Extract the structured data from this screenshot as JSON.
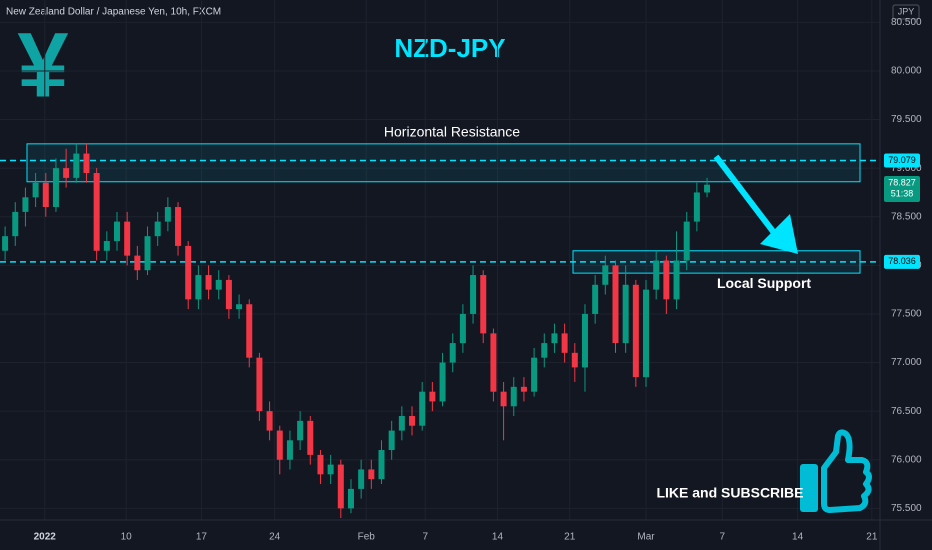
{
  "chart_data": {
    "type": "candlestick",
    "header": "New Zealand Dollar / Japanese Yen, 10h, FXCM",
    "currency": "JPY",
    "title": "NZD-JPY",
    "icon": "¥",
    "up_color": "#089981",
    "down_color": "#f23645",
    "accent_color": "#00e5ff",
    "open": [
      78.15,
      78.3,
      78.55,
      78.7,
      78.85,
      78.6,
      79.0,
      78.9,
      79.15,
      78.95,
      78.15,
      78.25,
      78.45,
      78.1,
      77.95,
      78.3,
      78.45,
      78.6,
      78.2,
      77.65,
      77.9,
      77.75,
      77.85,
      77.55,
      77.6,
      77.05,
      76.5,
      76.3,
      76.0,
      76.2,
      76.4,
      76.05,
      75.85,
      75.95,
      75.5,
      75.7,
      75.9,
      75.8,
      76.1,
      76.3,
      76.45,
      76.35,
      76.7,
      76.6,
      77.0,
      77.2,
      77.5,
      77.9,
      77.3,
      76.7,
      76.55,
      76.75,
      76.7,
      77.05,
      77.2,
      77.3,
      77.1,
      76.95,
      77.5,
      77.8,
      78.0,
      77.2,
      77.8,
      76.85,
      77.75,
      78.05,
      77.65,
      78.05,
      78.45,
      78.75
    ],
    "high": [
      78.4,
      78.65,
      78.8,
      78.95,
      78.95,
      79.1,
      79.2,
      79.25,
      79.25,
      79.0,
      78.35,
      78.55,
      78.55,
      78.2,
      78.4,
      78.55,
      78.7,
      78.65,
      78.25,
      78.0,
      78.0,
      77.95,
      77.9,
      77.7,
      77.65,
      77.1,
      76.6,
      76.35,
      76.3,
      76.5,
      76.45,
      76.1,
      76.05,
      76.0,
      75.8,
      76.0,
      76.0,
      76.2,
      76.4,
      76.55,
      76.55,
      76.8,
      76.8,
      77.1,
      77.3,
      77.6,
      78.0,
      77.95,
      77.35,
      76.8,
      76.85,
      76.85,
      77.15,
      77.3,
      77.4,
      77.4,
      77.2,
      77.6,
      77.9,
      78.1,
      78.05,
      78.0,
      77.85,
      77.85,
      78.15,
      78.1,
      78.35,
      78.55,
      78.85,
      78.9
    ],
    "low": [
      78.05,
      78.2,
      78.4,
      78.6,
      78.5,
      78.55,
      78.8,
      78.85,
      78.85,
      78.05,
      78.05,
      78.15,
      78.0,
      77.85,
      77.9,
      78.2,
      78.35,
      78.1,
      77.55,
      77.55,
      77.65,
      77.65,
      77.45,
      77.45,
      76.95,
      76.4,
      76.2,
      75.85,
      75.9,
      76.1,
      75.95,
      75.75,
      75.75,
      75.4,
      75.45,
      75.6,
      75.7,
      75.75,
      76.0,
      76.2,
      76.25,
      76.3,
      76.5,
      76.55,
      76.9,
      77.1,
      77.4,
      77.2,
      76.6,
      76.2,
      76.45,
      76.6,
      76.65,
      76.95,
      77.1,
      77.0,
      76.8,
      76.7,
      77.4,
      77.7,
      77.1,
      77.1,
      76.75,
      76.75,
      77.65,
      77.5,
      77.55,
      77.95,
      78.35,
      78.7
    ],
    "close": [
      78.3,
      78.55,
      78.7,
      78.85,
      78.6,
      79.0,
      78.9,
      79.15,
      78.95,
      78.15,
      78.25,
      78.45,
      78.1,
      77.95,
      78.3,
      78.45,
      78.6,
      78.2,
      77.65,
      77.9,
      77.75,
      77.85,
      77.55,
      77.6,
      77.05,
      76.5,
      76.3,
      76.0,
      76.2,
      76.4,
      76.05,
      75.85,
      75.95,
      75.5,
      75.7,
      75.9,
      75.8,
      76.1,
      76.3,
      76.45,
      76.35,
      76.7,
      76.6,
      77.0,
      77.2,
      77.5,
      77.9,
      77.3,
      76.7,
      76.55,
      76.75,
      76.7,
      77.05,
      77.2,
      77.3,
      77.1,
      76.95,
      77.5,
      77.8,
      78.0,
      77.2,
      77.8,
      76.85,
      77.75,
      78.05,
      77.65,
      78.05,
      78.45,
      78.75,
      78.83
    ],
    "xlim": [
      -0.5,
      86
    ],
    "xticks": [
      {
        "value": 3.9,
        "label": "2022"
      },
      {
        "value": 11.9,
        "label": "10"
      },
      {
        "value": 19.3,
        "label": "17"
      },
      {
        "value": 26.5,
        "label": "24"
      },
      {
        "value": 35.5,
        "label": "Feb"
      },
      {
        "value": 41.3,
        "label": "7"
      },
      {
        "value": 48.4,
        "label": "14"
      },
      {
        "value": 55.5,
        "label": "21"
      },
      {
        "value": 63,
        "label": "Mar"
      },
      {
        "value": 70.5,
        "label": "7"
      },
      {
        "value": 77.9,
        "label": "14"
      },
      {
        "value": 85.2,
        "label": "21"
      }
    ],
    "ylim": [
      75.38,
      80.73
    ],
    "yticks": [
      {
        "value": 75.5,
        "label": "75.500"
      },
      {
        "value": 76,
        "label": "76.000"
      },
      {
        "value": 76.5,
        "label": "76.500"
      },
      {
        "value": 77,
        "label": "77.000"
      },
      {
        "value": 77.5,
        "label": "77.500"
      },
      {
        "value": 78,
        "label": "78.000"
      },
      {
        "value": 78.5,
        "label": "78.500"
      },
      {
        "value": 79,
        "label": "79.000"
      },
      {
        "value": 79.5,
        "label": "79.500"
      },
      {
        "value": 80,
        "label": "80.000"
      },
      {
        "value": 80.5,
        "label": "80.500"
      }
    ],
    "grid": true,
    "resistance": {
      "label": "Horizontal Resistance",
      "level": 79.079,
      "zone": [
        78.86,
        79.25
      ]
    },
    "support": {
      "label": "Local Support",
      "level": 78.036,
      "zone": [
        77.92,
        78.15
      ]
    },
    "last_price": 78.827,
    "countdown": "51:38",
    "cta": "LIKE and SUBSCRIBE"
  }
}
